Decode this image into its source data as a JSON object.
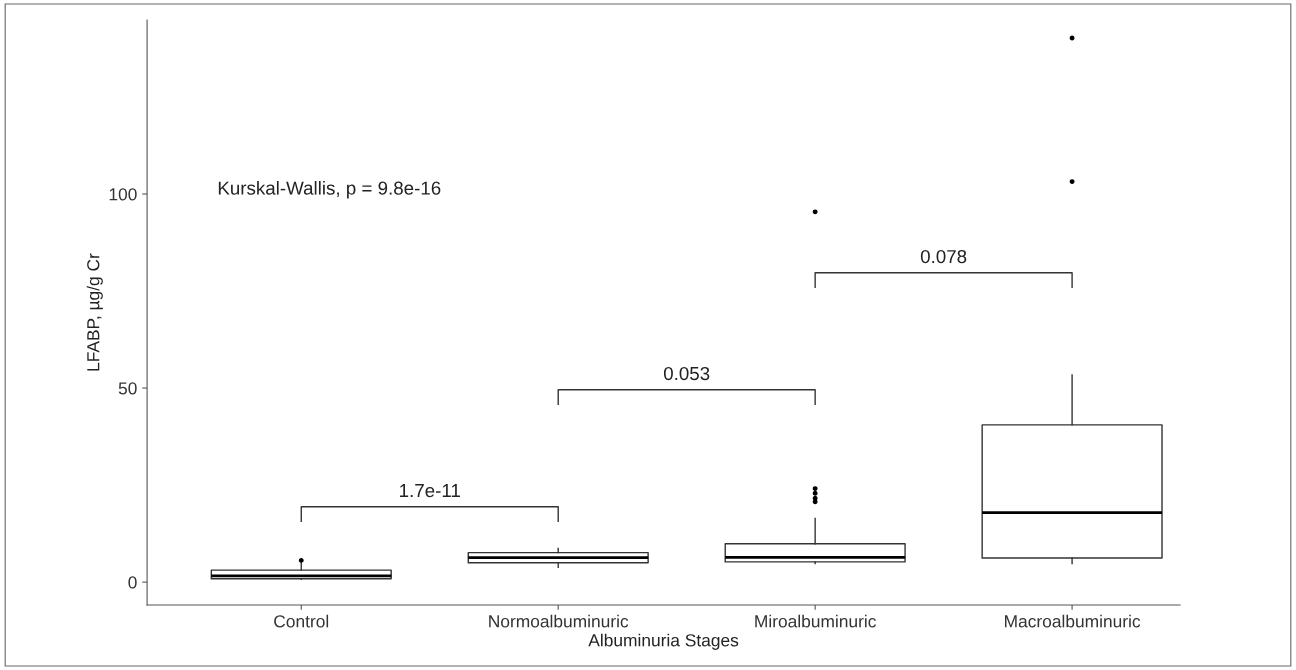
{
  "chart_data": {
    "type": "box",
    "xlabel": "Albuminuria Stages",
    "ylabel": "LFABP, µg/g Cr",
    "categories": [
      "Control",
      "Normoalbuminuric",
      "Miroalbuminuric",
      "Macroalbuminuric"
    ],
    "boxes": [
      {
        "low": 0.7,
        "q1": 0.85,
        "median": 1.6,
        "q3": 3.1,
        "high": 5.0,
        "outliers": [
          5.6
        ]
      },
      {
        "low": 3.8,
        "q1": 5.0,
        "median": 6.3,
        "q3": 7.6,
        "high": 8.7
      },
      {
        "low": 4.8,
        "q1": 5.2,
        "median": 6.4,
        "q3": 9.9,
        "high": 16.4,
        "outliers": [
          20.7,
          21.6,
          22.9,
          24.1,
          95.4
        ]
      },
      {
        "low": 4.8,
        "q1": 6.2,
        "median": 17.9,
        "q3": 40.5,
        "high": 53.4,
        "outliers": [
          103.2,
          140.2
        ]
      }
    ],
    "ylim": [
      -5.9,
      144.8
    ],
    "yticks": [
      0,
      50,
      100
    ],
    "grid": false,
    "legend": false,
    "annotations": [
      "Kurskal-Wallis, p = 9.8e-16",
      "1.7e-11",
      "0.053",
      "0.078"
    ]
  }
}
